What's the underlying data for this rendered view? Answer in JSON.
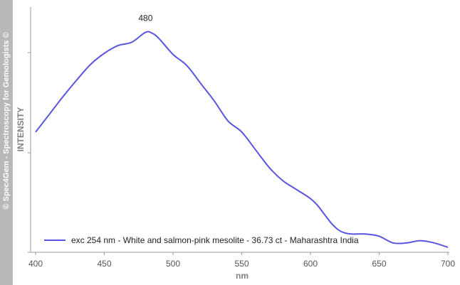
{
  "watermark": "© Spec4Gem - Spectroscopy for Gemologists ©",
  "chart_data": {
    "type": "line",
    "xlabel": "nm",
    "ylabel": "INTENSITY",
    "xlim": [
      400,
      700
    ],
    "ylim": [
      0,
      1
    ],
    "x_ticks": [
      "400",
      "450",
      "500",
      "550",
      "600",
      "650",
      "700"
    ],
    "annotations": [
      {
        "x": 480,
        "y": 0.97,
        "text": "480"
      }
    ],
    "grid": false,
    "legend_position": "bottom-left",
    "colors": {
      "series": "#5a55e0",
      "axis": "#9a9a9a",
      "text": "#222222",
      "label": "#808080"
    },
    "series": [
      {
        "name": "exc 254 nm - White and salmon-pink mesolite - 36.73 ct - Maharashtra India",
        "x": [
          400,
          410,
          420,
          430,
          440,
          450,
          460,
          470,
          480,
          485,
          490,
          500,
          510,
          520,
          530,
          540,
          550,
          560,
          570,
          580,
          590,
          600,
          605,
          610,
          615,
          620,
          625,
          630,
          640,
          650,
          660,
          670,
          680,
          690,
          700
        ],
        "y": [
          0.52,
          0.6,
          0.68,
          0.755,
          0.825,
          0.875,
          0.91,
          0.925,
          0.97,
          0.965,
          0.94,
          0.87,
          0.82,
          0.74,
          0.66,
          0.57,
          0.52,
          0.44,
          0.36,
          0.3,
          0.26,
          0.22,
          0.19,
          0.15,
          0.11,
          0.08,
          0.065,
          0.06,
          0.06,
          0.05,
          0.02,
          0.02,
          0.03,
          0.02,
          0.0
        ]
      }
    ]
  }
}
